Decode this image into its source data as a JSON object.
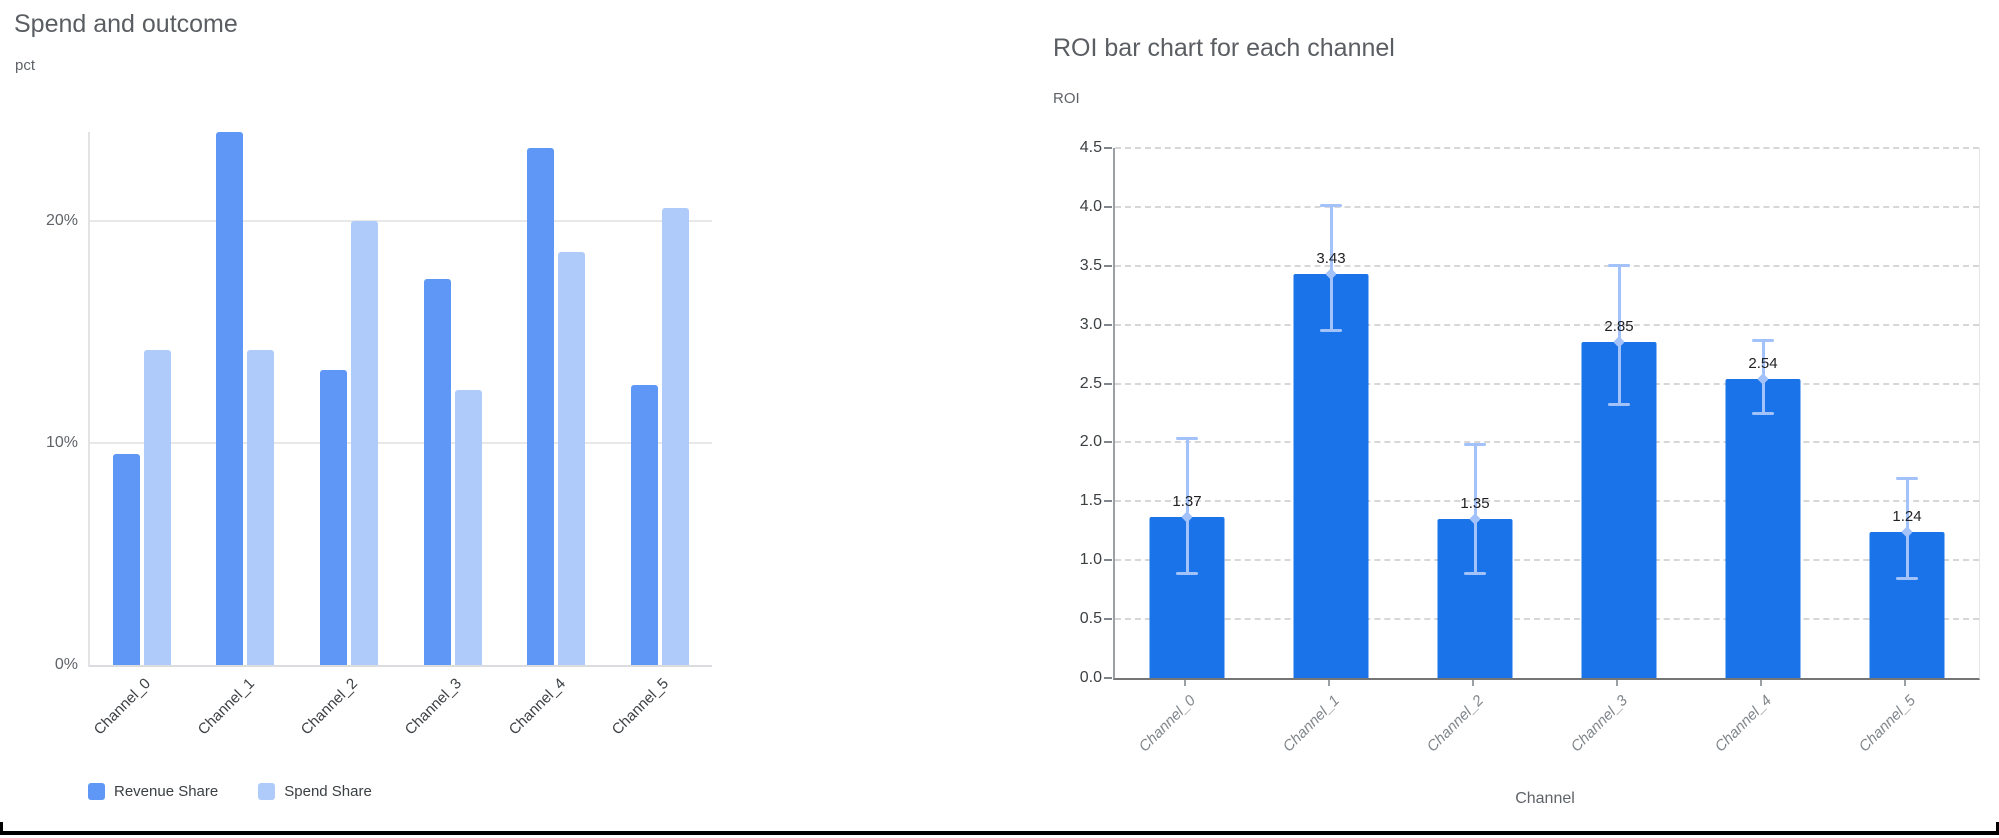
{
  "chart_data": [
    {
      "type": "bar",
      "title": "Spend and outcome",
      "unit_label": "pct",
      "xlabel": "",
      "categories": [
        "Channel_0",
        "Channel_1",
        "Channel_2",
        "Channel_3",
        "Channel_4",
        "Channel_5"
      ],
      "series": [
        {
          "name": "Revenue Share",
          "color": "#5e97f6",
          "values": [
            9.5,
            24.0,
            13.3,
            17.4,
            23.3,
            12.6
          ]
        },
        {
          "name": "Spend Share",
          "color": "#aecbfa",
          "values": [
            14.2,
            14.2,
            20.0,
            12.4,
            18.6,
            20.6
          ]
        }
      ],
      "ylim": [
        0,
        24
      ],
      "yticks": [
        "0%",
        "10%",
        "20%"
      ],
      "grid": "horizontal-solid",
      "legend_position": "bottom"
    },
    {
      "type": "bar",
      "title": "ROI bar chart for each channel",
      "unit_label": "ROI",
      "xlabel": "Channel",
      "categories": [
        "Channel_0",
        "Channel_1",
        "Channel_2",
        "Channel_3",
        "Channel_4",
        "Channel_5"
      ],
      "values": [
        1.37,
        3.43,
        1.35,
        2.85,
        2.54,
        1.24
      ],
      "value_labels": [
        "1.37",
        "3.43",
        "1.35",
        "2.85",
        "2.54",
        "1.24"
      ],
      "error_low": [
        0.88,
        2.95,
        0.88,
        2.32,
        2.24,
        0.84
      ],
      "error_high": [
        2.04,
        4.02,
        1.99,
        3.51,
        2.87,
        1.7
      ],
      "ylim": [
        0,
        4.5
      ],
      "yticks": [
        "0.0",
        "0.5",
        "1.0",
        "1.5",
        "2.0",
        "2.5",
        "3.0",
        "3.5",
        "4.0",
        "4.5"
      ],
      "grid": "horizontal-dashed",
      "bar_color": "#1a73e8",
      "error_color": "#a3c2f9"
    }
  ],
  "colors": {
    "title_text": "#5a5e63",
    "tick_text": "#5f6368",
    "value_label_text": "#202124",
    "gridline_solid": "#e8e8e8",
    "gridline_dashed": "#d7d7d7",
    "bottom_border": "#000000"
  }
}
